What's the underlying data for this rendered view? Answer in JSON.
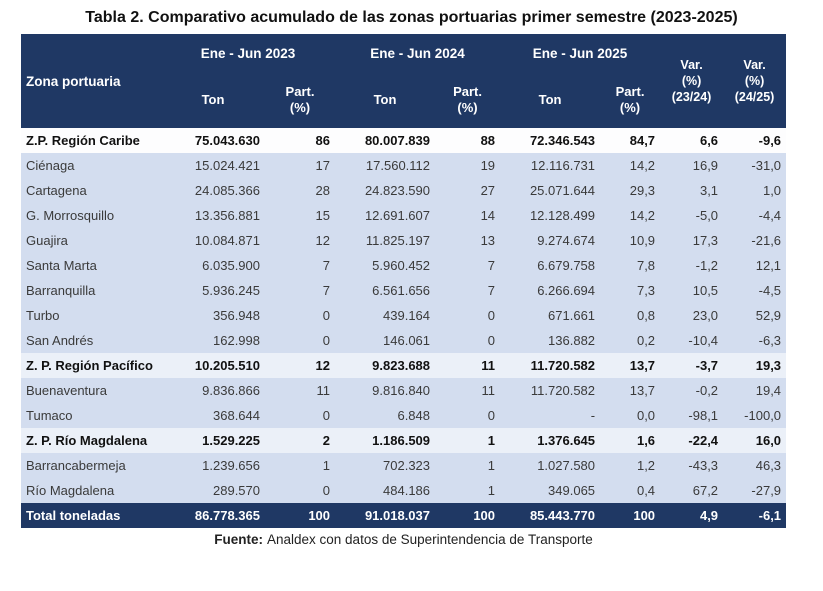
{
  "title": "Tabla 2. Comparativo acumulado de las zonas portuarias primer semestre (2023-2025)",
  "colors": {
    "header_navy": "#1f3864",
    "detail_row_blue": "#d3ddef",
    "section_row_pale": "#ebf0f8",
    "total_row_navy": "#1f3864",
    "body_text": "#3a3a3a"
  },
  "table": {
    "zona_header": "Zona portuaria",
    "periods": [
      "Ene - Jun 2023",
      "Ene - Jun 2024",
      "Ene - Jun 2025"
    ],
    "ton_label": "Ton",
    "part_label": [
      "Part.",
      "(%)"
    ],
    "var_labels": [
      [
        "Var.",
        "(%)",
        "(23/24)"
      ],
      [
        "Var.",
        "(%)",
        "(24/25)"
      ]
    ],
    "rows": [
      {
        "variant": "caribe",
        "cells": [
          "Z.P. Región Caribe",
          "75.043.630",
          "86",
          "80.007.839",
          "88",
          "72.346.543",
          "84,7",
          "6,6",
          "-9,6"
        ]
      },
      {
        "variant": "detail",
        "cells": [
          "Ciénaga",
          "15.024.421",
          "17",
          "17.560.112",
          "19",
          "12.116.731",
          "14,2",
          "16,9",
          "-31,0"
        ]
      },
      {
        "variant": "detail",
        "cells": [
          "Cartagena",
          "24.085.366",
          "28",
          "24.823.590",
          "27",
          "25.071.644",
          "29,3",
          "3,1",
          "1,0"
        ]
      },
      {
        "variant": "detail",
        "cells": [
          "G. Morrosquillo",
          "13.356.881",
          "15",
          "12.691.607",
          "14",
          "12.128.499",
          "14,2",
          "-5,0",
          "-4,4"
        ]
      },
      {
        "variant": "detail",
        "cells": [
          "Guajira",
          "10.084.871",
          "12",
          "11.825.197",
          "13",
          "9.274.674",
          "10,9",
          "17,3",
          "-21,6"
        ]
      },
      {
        "variant": "detail",
        "cells": [
          "Santa Marta",
          "6.035.900",
          "7",
          "5.960.452",
          "7",
          "6.679.758",
          "7,8",
          "-1,2",
          "12,1"
        ]
      },
      {
        "variant": "detail",
        "cells": [
          "Barranquilla",
          "5.936.245",
          "7",
          "6.561.656",
          "7",
          "6.266.694",
          "7,3",
          "10,5",
          "-4,5"
        ]
      },
      {
        "variant": "detail",
        "cells": [
          "Turbo",
          "356.948",
          "0",
          "439.164",
          "0",
          "671.661",
          "0,8",
          "23,0",
          "52,9"
        ]
      },
      {
        "variant": "detail",
        "cells": [
          "San Andrés",
          "162.998",
          "0",
          "146.061",
          "0",
          "136.882",
          "0,2",
          "-10,4",
          "-6,3"
        ]
      },
      {
        "variant": "section",
        "cells": [
          "Z. P. Región Pacífico",
          "10.205.510",
          "12",
          "9.823.688",
          "11",
          "11.720.582",
          "13,7",
          "-3,7",
          "19,3"
        ]
      },
      {
        "variant": "detail",
        "cells": [
          "Buenaventura",
          "9.836.866",
          "11",
          "9.816.840",
          "11",
          "11.720.582",
          "13,7",
          "-0,2",
          "19,4"
        ]
      },
      {
        "variant": "detail",
        "cells": [
          "Tumaco",
          "368.644",
          "0",
          "6.848",
          "0",
          "-",
          "0,0",
          "-98,1",
          "-100,0"
        ]
      },
      {
        "variant": "section",
        "cells": [
          "Z. P. Río Magdalena",
          "1.529.225",
          "2",
          "1.186.509",
          "1",
          "1.376.645",
          "1,6",
          "-22,4",
          "16,0"
        ]
      },
      {
        "variant": "detail",
        "cells": [
          "Barrancabermeja",
          "1.239.656",
          "1",
          "702.323",
          "1",
          "1.027.580",
          "1,2",
          "-43,3",
          "46,3"
        ]
      },
      {
        "variant": "detail",
        "cells": [
          "Río Magdalena",
          "289.570",
          "0",
          "484.186",
          "1",
          "349.065",
          "0,4",
          "67,2",
          "-27,9"
        ]
      },
      {
        "variant": "total",
        "cells": [
          "Total toneladas",
          "86.778.365",
          "100",
          "91.018.037",
          "100",
          "85.443.770",
          "100",
          "4,9",
          "-6,1"
        ]
      }
    ]
  },
  "footer": {
    "label": "Fuente:",
    "text": "Analdex con datos de Superintendencia de Transporte"
  }
}
